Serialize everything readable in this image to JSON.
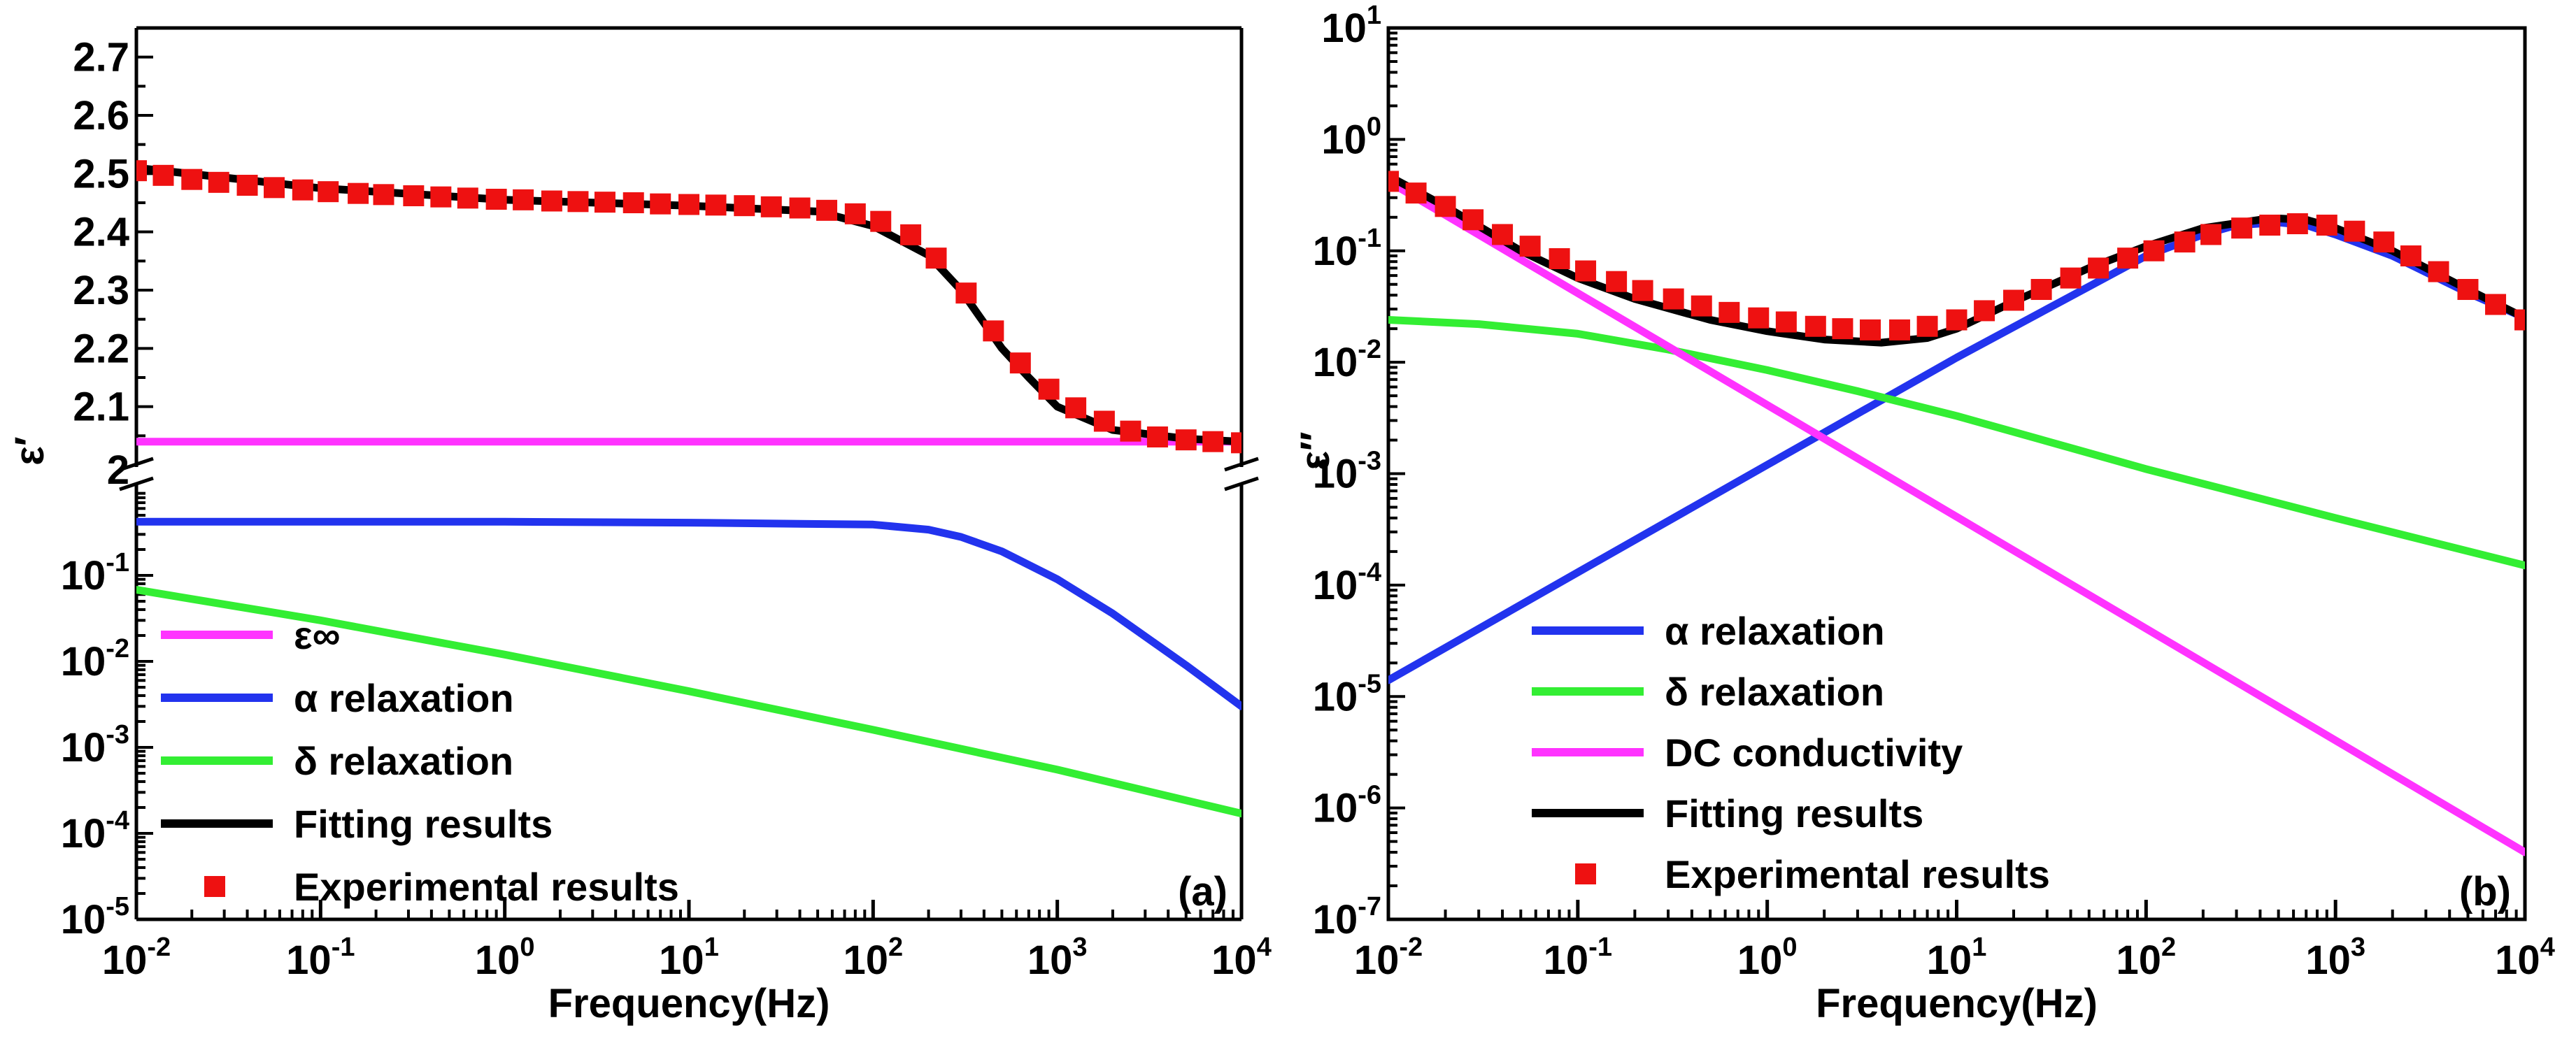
{
  "chart_data": [
    {
      "panel": "a",
      "type": "line",
      "panel_label": "(a)",
      "xlabel": "Frequency(Hz)",
      "ylabel": "ε′",
      "x_scale": "log",
      "xlim": [
        0.01,
        10000
      ],
      "x_ticks": [
        {
          "base": "10",
          "exp": "-2"
        },
        {
          "base": "10",
          "exp": "-1"
        },
        {
          "base": "10",
          "exp": "0"
        },
        {
          "base": "10",
          "exp": "1"
        },
        {
          "base": "10",
          "exp": "2"
        },
        {
          "base": "10",
          "exp": "3"
        },
        {
          "base": "10",
          "exp": "4"
        }
      ],
      "axis_break": true,
      "upper_axis": {
        "scale": "linear",
        "ylim": [
          2.0,
          2.75
        ],
        "ticks": [
          "2",
          "2.1",
          "2.2",
          "2.3",
          "2.4",
          "2.5",
          "2.6",
          "2.7"
        ]
      },
      "lower_axis": {
        "scale": "log",
        "ylim": [
          1e-05,
          1
        ],
        "ticks": [
          {
            "base": "10",
            "exp": "-1"
          },
          {
            "base": "10",
            "exp": "-2"
          },
          {
            "base": "10",
            "exp": "-3"
          },
          {
            "base": "10",
            "exp": "-4"
          },
          {
            "base": "10",
            "exp": "-5"
          }
        ]
      },
      "legend_position": "bottom-left",
      "legend": [
        {
          "label": "ε∞",
          "color": "#ff33ff",
          "kind": "line"
        },
        {
          "label": "α relaxation",
          "color": "#2233ee",
          "kind": "line"
        },
        {
          "label": "δ relaxation",
          "color": "#33ee33",
          "kind": "line"
        },
        {
          "label": "Fitting results",
          "color": "#000000",
          "kind": "line"
        },
        {
          "label": "Experimental results",
          "color": "#ee1111",
          "kind": "marker"
        }
      ],
      "series": [
        {
          "name": "ε∞",
          "axis": "upper",
          "color": "#ff33ff",
          "x": [
            0.01,
            10000
          ],
          "y": [
            2.04,
            2.04
          ]
        },
        {
          "name": "α relaxation",
          "axis": "lower",
          "color": "#2233ee",
          "x": [
            0.01,
            0.1,
            1,
            10,
            100,
            200,
            300,
            500,
            1000,
            2000,
            5000,
            10000
          ],
          "y": [
            0.42,
            0.42,
            0.42,
            0.41,
            0.39,
            0.34,
            0.28,
            0.19,
            0.09,
            0.036,
            0.009,
            0.003
          ]
        },
        {
          "name": "δ relaxation",
          "axis": "lower",
          "color": "#33ee33",
          "x": [
            0.01,
            0.1,
            1,
            10,
            100,
            1000,
            10000
          ],
          "y": [
            0.068,
            0.03,
            0.012,
            0.0045,
            0.0016,
            0.00055,
            0.00017
          ]
        },
        {
          "name": "Fitting results",
          "axis": "upper",
          "color": "#000000",
          "x": [
            0.01,
            0.1,
            1,
            10,
            50,
            100,
            200,
            300,
            500,
            700,
            1000,
            2000,
            5000,
            10000
          ],
          "y": [
            2.51,
            2.475,
            2.455,
            2.445,
            2.435,
            2.41,
            2.36,
            2.3,
            2.2,
            2.15,
            2.1,
            2.06,
            2.045,
            2.04
          ]
        },
        {
          "name": "Experimental results",
          "axis": "upper",
          "color": "#ee1111",
          "marker": "square",
          "x": [
            0.01,
            0.014,
            0.02,
            0.028,
            0.04,
            0.056,
            0.08,
            0.11,
            0.16,
            0.22,
            0.32,
            0.45,
            0.63,
            0.9,
            1.26,
            1.8,
            2.5,
            3.5,
            5,
            7,
            10,
            14,
            20,
            28,
            40,
            56,
            80,
            110,
            160,
            220,
            320,
            450,
            630,
            900,
            1260,
            1800,
            2500,
            3500,
            5000,
            7000,
            10000
          ],
          "y": [
            2.505,
            2.497,
            2.49,
            2.485,
            2.48,
            2.476,
            2.472,
            2.469,
            2.466,
            2.464,
            2.462,
            2.46,
            2.458,
            2.456,
            2.455,
            2.453,
            2.452,
            2.451,
            2.45,
            2.448,
            2.447,
            2.446,
            2.445,
            2.443,
            2.441,
            2.437,
            2.431,
            2.418,
            2.395,
            2.355,
            2.295,
            2.23,
            2.175,
            2.13,
            2.098,
            2.075,
            2.058,
            2.048,
            2.043,
            2.04,
            2.038
          ]
        }
      ]
    },
    {
      "panel": "b",
      "type": "line",
      "panel_label": "(b)",
      "xlabel": "Frequency(Hz)",
      "ylabel": "ε″",
      "x_scale": "log",
      "y_scale": "log",
      "xlim": [
        0.01,
        10000
      ],
      "ylim": [
        1e-07,
        10
      ],
      "x_ticks": [
        {
          "base": "10",
          "exp": "-2"
        },
        {
          "base": "10",
          "exp": "-1"
        },
        {
          "base": "10",
          "exp": "0"
        },
        {
          "base": "10",
          "exp": "1"
        },
        {
          "base": "10",
          "exp": "2"
        },
        {
          "base": "10",
          "exp": "3"
        },
        {
          "base": "10",
          "exp": "4"
        }
      ],
      "y_ticks": [
        {
          "base": "10",
          "exp": "1"
        },
        {
          "base": "10",
          "exp": "0"
        },
        {
          "base": "10",
          "exp": "-1"
        },
        {
          "base": "10",
          "exp": "-2"
        },
        {
          "base": "10",
          "exp": "-3"
        },
        {
          "base": "10",
          "exp": "-4"
        },
        {
          "base": "10",
          "exp": "-5"
        },
        {
          "base": "10",
          "exp": "-6"
        },
        {
          "base": "10",
          "exp": "-7"
        }
      ],
      "legend_position": "bottom-left",
      "legend": [
        {
          "label": "α relaxation",
          "color": "#2233ee",
          "kind": "line"
        },
        {
          "label": "δ relaxation",
          "color": "#33ee33",
          "kind": "line"
        },
        {
          "label": "DC conductivity",
          "color": "#ff33ff",
          "kind": "line"
        },
        {
          "label": "Fitting results",
          "color": "#000000",
          "kind": "line"
        },
        {
          "label": "Experimental results",
          "color": "#ee1111",
          "kind": "marker"
        }
      ],
      "series": [
        {
          "name": "α relaxation",
          "color": "#2233ee",
          "x": [
            0.01,
            0.1,
            1,
            10,
            100,
            200,
            300,
            500,
            700,
            1000,
            2000,
            5000,
            10000
          ],
          "y": [
            1.4e-05,
            0.00013,
            0.0012,
            0.011,
            0.09,
            0.14,
            0.17,
            0.18,
            0.17,
            0.14,
            0.09,
            0.042,
            0.025
          ]
        },
        {
          "name": "δ relaxation",
          "color": "#33ee33",
          "x": [
            0.01,
            0.03,
            0.1,
            0.3,
            1,
            3,
            10,
            100,
            1000,
            10000
          ],
          "y": [
            0.024,
            0.022,
            0.018,
            0.013,
            0.0085,
            0.0055,
            0.0033,
            0.0011,
            0.0004,
            0.00015
          ]
        },
        {
          "name": "DC conductivity",
          "color": "#ff33ff",
          "x": [
            0.01,
            10000
          ],
          "y": [
            0.42,
            4e-07
          ]
        },
        {
          "name": "Fitting results",
          "color": "#000000",
          "x": [
            0.01,
            0.02,
            0.05,
            0.1,
            0.2,
            0.5,
            1,
            2,
            4,
            7,
            10,
            20,
            50,
            100,
            200,
            400,
            500,
            700,
            1000,
            2000,
            5000,
            10000
          ],
          "y": [
            0.47,
            0.25,
            0.1,
            0.057,
            0.037,
            0.024,
            0.019,
            0.016,
            0.015,
            0.0165,
            0.02,
            0.035,
            0.07,
            0.11,
            0.16,
            0.19,
            0.195,
            0.19,
            0.16,
            0.1,
            0.045,
            0.025
          ]
        },
        {
          "name": "Experimental results",
          "color": "#ee1111",
          "marker": "square",
          "x": [
            0.01,
            0.014,
            0.02,
            0.028,
            0.04,
            0.056,
            0.08,
            0.11,
            0.16,
            0.22,
            0.32,
            0.45,
            0.63,
            0.9,
            1.26,
            1.8,
            2.5,
            3.5,
            5,
            7,
            10,
            14,
            20,
            28,
            40,
            56,
            80,
            110,
            160,
            220,
            320,
            450,
            630,
            900,
            1260,
            1800,
            2500,
            3500,
            5000,
            7000,
            10000
          ],
          "y": [
            0.42,
            0.33,
            0.25,
            0.19,
            0.14,
            0.11,
            0.085,
            0.066,
            0.053,
            0.044,
            0.037,
            0.032,
            0.028,
            0.025,
            0.023,
            0.021,
            0.02,
            0.0195,
            0.0195,
            0.021,
            0.024,
            0.029,
            0.036,
            0.045,
            0.057,
            0.07,
            0.086,
            0.1,
            0.12,
            0.14,
            0.16,
            0.17,
            0.175,
            0.17,
            0.15,
            0.12,
            0.09,
            0.065,
            0.045,
            0.033,
            0.024
          ]
        }
      ]
    }
  ]
}
